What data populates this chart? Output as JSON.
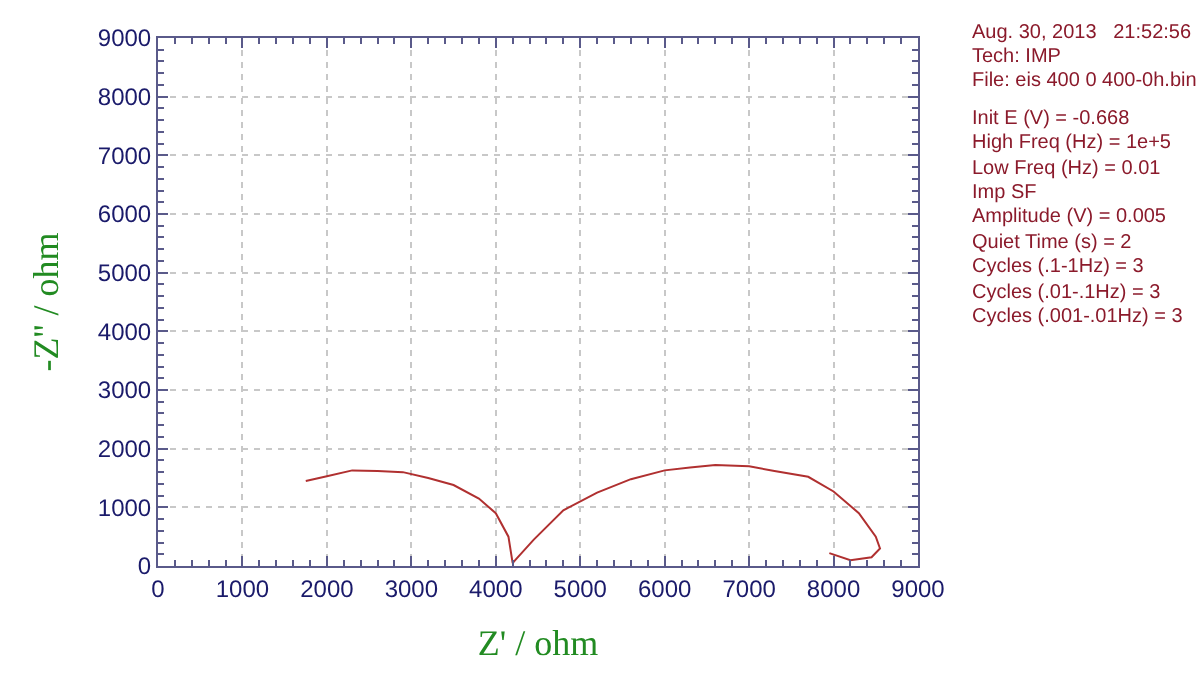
{
  "chart_data": {
    "type": "line",
    "xlabel": "Z' / ohm",
    "ylabel": "-Z'' / ohm",
    "x": [
      1750,
      2000,
      2300,
      2600,
      2900,
      3200,
      3500,
      3800,
      4000,
      4150,
      4200,
      4230,
      4450,
      4800,
      5200,
      5600,
      6000,
      6300,
      6600,
      7000,
      7300,
      7700,
      8000,
      8300,
      8500,
      8550,
      8450,
      8200,
      7950
    ],
    "series": [
      {
        "color": "#b03030",
        "values": [
          1450,
          1530,
          1630,
          1620,
          1600,
          1500,
          1380,
          1150,
          900,
          500,
          50,
          100,
          450,
          950,
          1250,
          1480,
          1630,
          1680,
          1720,
          1700,
          1620,
          1520,
          1270,
          900,
          500,
          300,
          150,
          100,
          220
        ]
      }
    ],
    "xlim": [
      0,
      9000
    ],
    "xticks": [
      0,
      1000,
      2000,
      3000,
      4000,
      5000,
      6000,
      7000,
      8000,
      9000
    ],
    "ylim": [
      0,
      9000
    ],
    "yticks": [
      0,
      1000,
      2000,
      3000,
      4000,
      5000,
      6000,
      7000,
      8000,
      9000
    ],
    "grid": true,
    "marker": "none",
    "line_style": "solid",
    "annotations": [
      "Aug. 30, 2013   21:52:56",
      "Tech: IMP",
      "File: eis 400 0 400-0h.bin",
      "Init E (V) = -0.668",
      "High Freq (Hz) = 1e+5",
      "Low Freq (Hz) = 0.01",
      "Imp SF",
      "Amplitude (V) = 0.005",
      "Quiet Time (s) = 2",
      "Cycles (.1-1Hz) = 3",
      "Cycles (.01-.1Hz) = 3",
      "Cycles (.001-.01Hz) = 3"
    ]
  }
}
